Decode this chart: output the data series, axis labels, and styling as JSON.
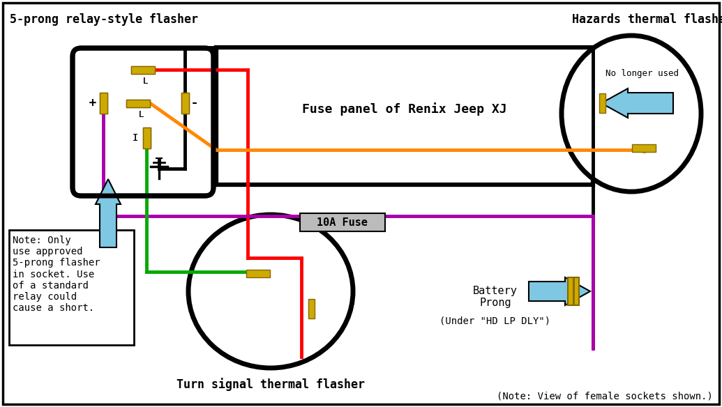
{
  "bg_color": "#ffffff",
  "wire_colors": {
    "red": "#ff0000",
    "orange": "#ff8800",
    "purple": "#aa00aa",
    "green": "#00aa00",
    "black": "#000000"
  },
  "pin_color": "#ccaa00",
  "pin_edge": "#886600",
  "arrow_color": "#7ec8e3",
  "labels": {
    "relay_title": "5-prong relay-style flasher",
    "hazards_title": "Hazards thermal flasher",
    "fuse_panel": "Fuse panel of Renix Jeep XJ",
    "fuse_label": "10A Fuse",
    "turn_signal": "Turn signal thermal flasher",
    "battery_prong": "Battery\nProng",
    "under_label": "(Under \"HD LP DLY\")",
    "no_longer": "No longer used",
    "note": "Note: Only\nuse approved\n5-prong flasher\nin socket. Use\nof a standard\nrelay could\ncause a short.",
    "note_view": "(Note: View of female sockets shown.)",
    "plus": "+",
    "minus": "-",
    "L1": "L",
    "L2": "L",
    "I": "I"
  }
}
